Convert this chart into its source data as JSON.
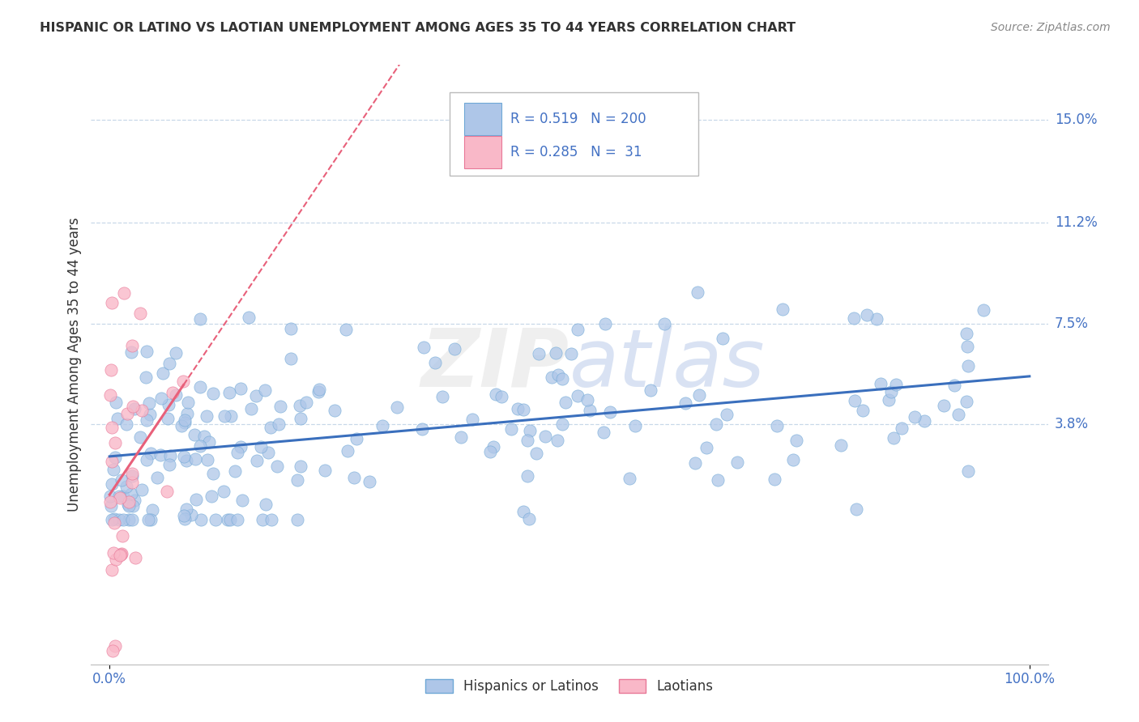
{
  "title": "HISPANIC OR LATINO VS LAOTIAN UNEMPLOYMENT AMONG AGES 35 TO 44 YEARS CORRELATION CHART",
  "source": "Source: ZipAtlas.com",
  "ylabel": "Unemployment Among Ages 35 to 44 years",
  "xlim": [
    -2,
    102
  ],
  "ylim": [
    -5,
    17
  ],
  "ytick_labels": [
    "3.8%",
    "7.5%",
    "11.2%",
    "15.0%"
  ],
  "ytick_values": [
    3.8,
    7.5,
    11.2,
    15.0
  ],
  "xtick_labels": [
    "0.0%",
    "100.0%"
  ],
  "xtick_values": [
    0,
    100
  ],
  "blue_R": 0.519,
  "blue_N": 200,
  "pink_R": 0.285,
  "pink_N": 31,
  "blue_color": "#aec6e8",
  "blue_edge_color": "#6fa8d6",
  "blue_line_color": "#3a6fbd",
  "pink_color": "#f9b8c8",
  "pink_edge_color": "#e87898",
  "pink_line_color": "#e8607a",
  "watermark": "ZIPatlas",
  "legend_label_blue": "Hispanics or Latinos",
  "legend_label_pink": "Laotians",
  "background_color": "#ffffff",
  "grid_color": "#c8d8e8",
  "title_color": "#333333",
  "axis_label_color": "#333333",
  "tick_label_color": "#4472c4",
  "source_color": "#888888"
}
